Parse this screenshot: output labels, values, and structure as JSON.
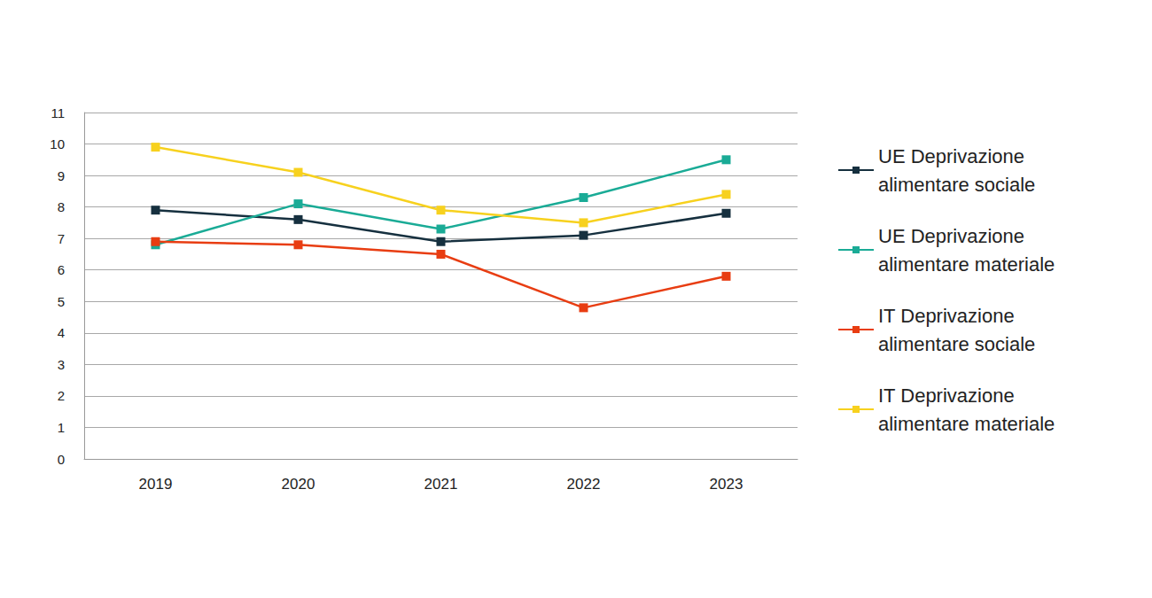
{
  "chart_data": {
    "type": "line",
    "categories": [
      "2019",
      "2020",
      "2021",
      "2022",
      "2023"
    ],
    "series": [
      {
        "name": "UE Deprivazione alimentare sociale",
        "color": "#16303f",
        "values": [
          7.9,
          7.6,
          6.9,
          7.1,
          7.8
        ]
      },
      {
        "name": "UE Deprivazione alimentare materiale",
        "color": "#1aab96",
        "values": [
          6.8,
          8.1,
          7.3,
          8.3,
          9.5
        ]
      },
      {
        "name": "IT Deprivazione alimentare sociale",
        "color": "#e83d12",
        "values": [
          6.9,
          6.8,
          6.5,
          4.8,
          5.8
        ]
      },
      {
        "name": "IT Deprivazione alimentare materiale",
        "color": "#f7d11e",
        "values": [
          9.9,
          9.1,
          7.9,
          7.5,
          8.4
        ]
      }
    ],
    "ylim": [
      0,
      11
    ],
    "yticks": [
      0,
      1,
      2,
      3,
      4,
      5,
      6,
      7,
      8,
      9,
      10,
      11
    ],
    "grid": true,
    "legend": "right",
    "marker": "square"
  }
}
